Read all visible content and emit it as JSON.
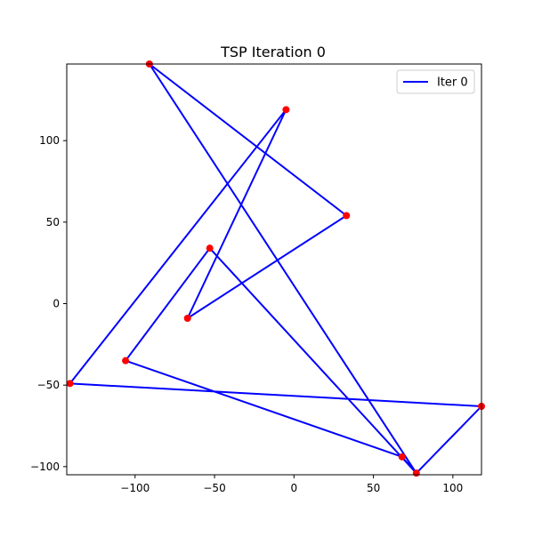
{
  "chart_data": {
    "type": "line",
    "title": "TSP Iteration 0",
    "xlabel": "",
    "ylabel": "",
    "xlim": [
      -143,
      118
    ],
    "ylim": [
      -105,
      147
    ],
    "xticks": [
      -100,
      -50,
      0,
      50,
      100
    ],
    "yticks": [
      -100,
      -50,
      0,
      50,
      100
    ],
    "grid": false,
    "legend": {
      "position": "top-right"
    },
    "cities": {
      "color": "#ff0000",
      "x": [
        -91,
        33,
        -67,
        -5,
        -141,
        118,
        77,
        68,
        -106,
        -53
      ],
      "y": [
        147,
        54,
        -9,
        119,
        -49,
        -63,
        -104,
        -94,
        -35,
        34
      ]
    },
    "series": [
      {
        "name": "Iter 0",
        "color": "#0000ff",
        "x": [
          -91,
          33,
          -67,
          -5,
          -141,
          118,
          77,
          68,
          -106,
          -53,
          77,
          -91
        ],
        "y": [
          147,
          54,
          -9,
          119,
          -49,
          -63,
          -104,
          -94,
          -35,
          34,
          -104,
          147
        ]
      }
    ]
  }
}
